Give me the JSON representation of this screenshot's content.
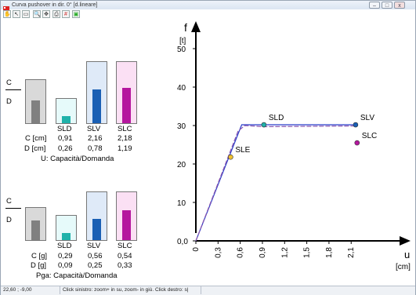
{
  "window": {
    "title": "Curva pushover in dir. 0° [d.lineare]",
    "btn_min": "–",
    "btn_max": "□",
    "btn_close": "x"
  },
  "toolbar": {
    "icons": [
      "hand-icon",
      "cursor-icon",
      "zoom-box-icon",
      "zoom-in-icon",
      "pan-icon",
      "print-icon",
      "grid-icon",
      "export-icon"
    ]
  },
  "ud_panel": {
    "ratio_num": "C",
    "ratio_den": "D",
    "columns": [
      "SLD",
      "SLV",
      "SLC"
    ],
    "row1_label": "C [cm]",
    "row2_label": "D [cm]",
    "C": [
      "0,91",
      "2,16",
      "2,18"
    ],
    "D": [
      "0,26",
      "0,78",
      "1,19"
    ],
    "caption": "U: Capacità/Domanda",
    "levels": [
      0.28,
      0.55,
      0.58
    ]
  },
  "pga_panel": {
    "ratio_num": "C",
    "ratio_den": "D",
    "columns": [
      "SLD",
      "SLV",
      "SLC"
    ],
    "row1_label": "C [g]",
    "row2_label": "D [g]",
    "C": [
      "0,29",
      "0,56",
      "0,54"
    ],
    "D": [
      "0,09",
      "0,25",
      "0,33"
    ],
    "caption": "Pga: Capacità/Domanda",
    "levels": [
      0.28,
      0.45,
      0.62
    ]
  },
  "colors": {
    "SLD_fill": "#20b2aa",
    "SLD_bg": "#e6fafa",
    "SLV_fill": "#1a5fb4",
    "SLV_bg": "#dfeaf8",
    "SLC_fill": "#b5179e",
    "SLC_bg": "#fbe0f4",
    "ref_fill": "#808080",
    "ref_bg": "#d9d9d9",
    "curve1": "#2a3ec9",
    "curve2": "#8a56b0"
  },
  "chart_data": {
    "type": "line",
    "ylabel_top": "f",
    "ylabel_unit": "[t]",
    "xlabel": "u",
    "xlabel_unit": "[cm]",
    "ylim": [
      0,
      50
    ],
    "xlim": [
      0,
      2.4
    ],
    "yticks": [
      0,
      10,
      20,
      30,
      40,
      50
    ],
    "yticklabels": [
      "0,0",
      "10",
      "20",
      "30",
      "40",
      "50"
    ],
    "xticks": [
      0,
      0.3,
      0.6,
      0.9,
      1.2,
      1.5,
      1.8,
      2.1
    ],
    "xticklabels": [
      "0",
      "0,3",
      "0,6",
      "0,9",
      "1,2",
      "1,5",
      "1,8",
      "2,1"
    ],
    "series": [
      {
        "x": [
          0,
          0.62,
          0.92,
          2.16
        ],
        "y": [
          0,
          30.2,
          30.2,
          30.2
        ]
      },
      {
        "x": [
          0,
          0.57,
          0.66,
          0.92,
          2.16
        ],
        "y": [
          0,
          28.5,
          30.0,
          29.7,
          29.9
        ]
      }
    ],
    "points": [
      {
        "label": "SLE",
        "x": 0.47,
        "y": 21.8,
        "color": "#f0c030"
      },
      {
        "label": "SLD",
        "x": 0.92,
        "y": 30.2,
        "color": "#20b2aa"
      },
      {
        "label": "SLV",
        "x": 2.16,
        "y": 30.2,
        "color": "#1a5fb4"
      },
      {
        "label": "SLC",
        "x": 2.18,
        "y": 25.5,
        "color": "#b5179e"
      }
    ]
  },
  "status": {
    "coords": "22,60 ; -9,00",
    "hint": "Click sinistro: zoom+ in su, zoom- in giù. Click destro: s|"
  }
}
